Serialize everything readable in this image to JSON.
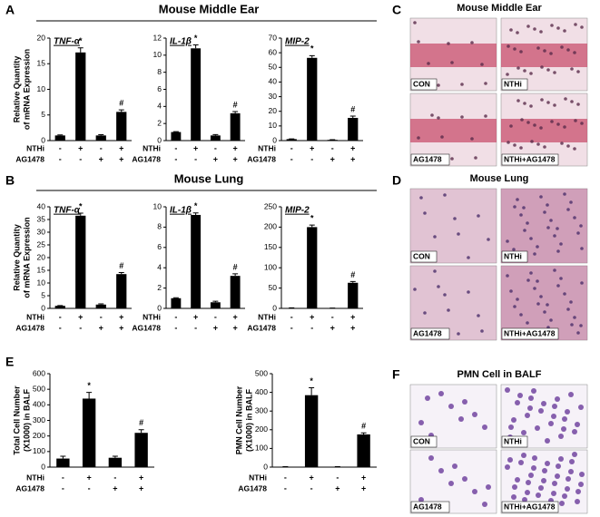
{
  "sections": [
    {
      "letter": "A",
      "title": "Mouse Middle Ear"
    },
    {
      "letter": "B",
      "title": "Mouse Lung"
    },
    {
      "letter": "C",
      "title": "Mouse Middle Ear"
    },
    {
      "letter": "D",
      "title": "Mouse Lung"
    },
    {
      "letter": "E"
    },
    {
      "letter": "F",
      "title": "PMN Cell in BALF"
    }
  ],
  "image_labels": [
    "CON",
    "NTHi",
    "AG1478",
    "NTHi+AG1478"
  ],
  "chart_data": [
    {
      "type": "bar",
      "title": "TNF-α",
      "ylabel": [
        "Relative Quantity",
        "of mRNA Expression"
      ],
      "color": "#000000",
      "ylim": [
        0,
        20
      ],
      "yticks": [
        0,
        5,
        10,
        15,
        20
      ],
      "values": [
        1,
        17.2,
        1,
        5.6
      ],
      "errors": [
        0.1,
        0.9,
        0.15,
        0.4
      ],
      "value_marks": [
        null,
        "*",
        null,
        "#"
      ],
      "condition_rows": [
        {
          "label": "NTHi",
          "marks": [
            "-",
            "+",
            "-",
            "+"
          ]
        },
        {
          "label": "AG1478",
          "marks": [
            "-",
            "-",
            "+",
            "+"
          ]
        }
      ]
    },
    {
      "type": "bar",
      "title": "IL-1β",
      "color": "#000000",
      "ylim": [
        0,
        12
      ],
      "yticks": [
        0,
        2,
        4,
        6,
        8,
        10,
        12
      ],
      "values": [
        1,
        10.8,
        0.6,
        3.2
      ],
      "errors": [
        0.05,
        0.4,
        0.1,
        0.2
      ],
      "value_marks": [
        null,
        "*",
        null,
        "#"
      ],
      "condition_rows": [
        {
          "label": "NTHi",
          "marks": [
            "-",
            "+",
            "-",
            "+"
          ]
        },
        {
          "label": "AG1478",
          "marks": [
            "-",
            "-",
            "+",
            "+"
          ]
        }
      ]
    },
    {
      "type": "bar",
      "title": "MIP-2",
      "color": "#000000",
      "ylim": [
        0,
        70
      ],
      "yticks": [
        0,
        10,
        20,
        30,
        40,
        50,
        60,
        70
      ],
      "values": [
        1,
        56.5,
        0.5,
        15.5
      ],
      "errors": [
        0.2,
        1.5,
        0.1,
        1.2
      ],
      "value_marks": [
        null,
        "*",
        null,
        "#"
      ],
      "condition_rows": [
        {
          "label": "NTHi",
          "marks": [
            "-",
            "+",
            "-",
            "+"
          ]
        },
        {
          "label": "AG1478",
          "marks": [
            "-",
            "-",
            "+",
            "+"
          ]
        }
      ]
    },
    {
      "type": "bar",
      "title": "TNF-α",
      "ylabel": [
        "Relative Quantity",
        "of mRNA Expression"
      ],
      "color": "#000000",
      "ylim": [
        0,
        40
      ],
      "yticks": [
        0,
        5,
        10,
        15,
        20,
        25,
        30,
        35,
        40
      ],
      "values": [
        1,
        36.5,
        1.5,
        13.5
      ],
      "errors": [
        0.1,
        1,
        0.3,
        0.6
      ],
      "value_marks": [
        null,
        "*",
        null,
        "#"
      ],
      "condition_rows": [
        {
          "label": "NTHi",
          "marks": [
            "-",
            "+",
            "-",
            "+"
          ]
        },
        {
          "label": "AG1478",
          "marks": [
            "-",
            "-",
            "+",
            "+"
          ]
        }
      ]
    },
    {
      "type": "bar",
      "title": "IL-1β",
      "color": "#000000",
      "ylim": [
        0,
        10
      ],
      "yticks": [
        0,
        2,
        4,
        6,
        8,
        10
      ],
      "values": [
        1,
        9.2,
        0.6,
        3.2
      ],
      "errors": [
        0.05,
        0.2,
        0.1,
        0.2
      ],
      "value_marks": [
        null,
        "*",
        null,
        "#"
      ],
      "condition_rows": [
        {
          "label": "NTHi",
          "marks": [
            "-",
            "+",
            "-",
            "+"
          ]
        },
        {
          "label": "AG1478",
          "marks": [
            "-",
            "-",
            "+",
            "+"
          ]
        }
      ]
    },
    {
      "type": "bar",
      "title": "MIP-2",
      "color": "#000000",
      "ylim": [
        0,
        250
      ],
      "yticks": [
        0,
        50,
        100,
        150,
        200,
        250
      ],
      "values": [
        1,
        200,
        0.5,
        63
      ],
      "errors": [
        0.5,
        5,
        0.3,
        3
      ],
      "value_marks": [
        null,
        "*",
        null,
        "#"
      ],
      "condition_rows": [
        {
          "label": "NTHi",
          "marks": [
            "-",
            "+",
            "-",
            "+"
          ]
        },
        {
          "label": "AG1478",
          "marks": [
            "-",
            "-",
            "+",
            "+"
          ]
        }
      ]
    },
    {
      "type": "bar",
      "ylabel": [
        "Total Cell Number",
        "(X1000) in BALF"
      ],
      "color": "#000000",
      "ylim": [
        0,
        600
      ],
      "yticks": [
        0,
        100,
        200,
        300,
        400,
        500,
        600
      ],
      "values": [
        55,
        440,
        60,
        220
      ],
      "errors": [
        15,
        40,
        10,
        20
      ],
      "value_marks": [
        null,
        "*",
        null,
        "#"
      ],
      "condition_rows": [
        {
          "label": "NTHi",
          "marks": [
            "-",
            "+",
            "-",
            "+"
          ]
        },
        {
          "label": "AG1478",
          "marks": [
            "-",
            "-",
            "+",
            "+"
          ]
        }
      ]
    },
    {
      "type": "bar",
      "ylabel": [
        "PMN Cell Number",
        "(X1000) in BALF"
      ],
      "color": "#000000",
      "ylim": [
        0,
        500
      ],
      "yticks": [
        0,
        100,
        200,
        300,
        400,
        500
      ],
      "values": [
        2,
        385,
        2,
        175
      ],
      "errors": [
        0.5,
        40,
        0.5,
        8
      ],
      "value_marks": [
        null,
        "*",
        null,
        "#"
      ],
      "condition_rows": [
        {
          "label": "NTHi",
          "marks": [
            "-",
            "+",
            "-",
            "+"
          ]
        },
        {
          "label": "AG1478",
          "marks": [
            "-",
            "-",
            "+",
            "+"
          ]
        }
      ]
    }
  ]
}
